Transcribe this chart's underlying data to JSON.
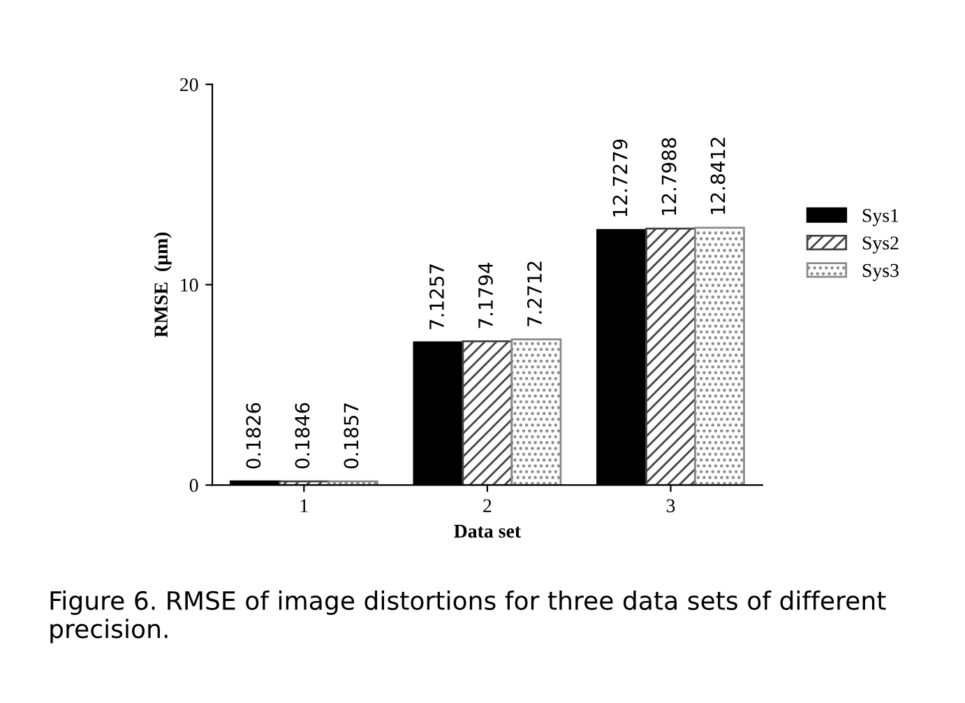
{
  "chart_data": {
    "type": "bar",
    "ylabel": "RMSE  (µm)",
    "xlabel": "Data set",
    "categories": [
      "1",
      "2",
      "3"
    ],
    "series": [
      {
        "name": "Sys1",
        "color": "#000000",
        "values": [
          0.1826,
          7.1257,
          12.7279
        ]
      },
      {
        "name": "Sys2",
        "color": "#444444",
        "values": [
          0.1846,
          7.1794,
          12.7988
        ]
      },
      {
        "name": "Sys3",
        "color": "#8a8a8a",
        "values": [
          0.1857,
          7.2712,
          12.8412
        ]
      }
    ],
    "ylim": [
      0,
      20
    ],
    "yticks": [
      0,
      10,
      20
    ],
    "data_labels": true,
    "grid": false,
    "legend": "right",
    "annotations": [
      "Figure 6. RMSE of image distortions for three data sets of different precision."
    ]
  }
}
